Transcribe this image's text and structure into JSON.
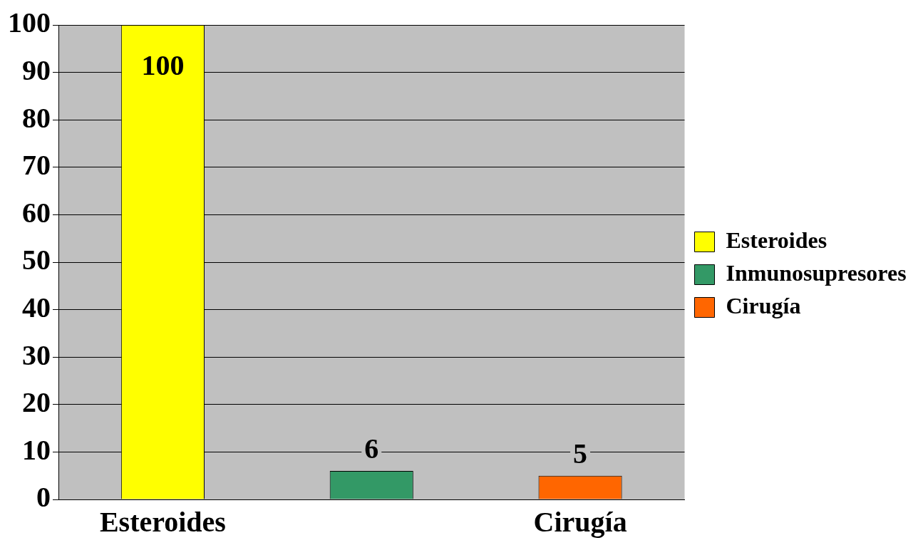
{
  "chart_data": {
    "type": "bar",
    "categories": [
      "Esteroides",
      null,
      "Cirugía"
    ],
    "series": [
      {
        "name": "Esteroides",
        "color": "#ffff00",
        "values": [
          100,
          null,
          null
        ]
      },
      {
        "name": "Inmunosupresores",
        "color": "#339966",
        "values": [
          null,
          6,
          null
        ]
      },
      {
        "name": "Cirugía",
        "color": "#ff6600",
        "values": [
          null,
          null,
          5
        ]
      }
    ],
    "ylim": [
      0,
      100
    ],
    "yticks": [
      0,
      10,
      20,
      30,
      40,
      50,
      60,
      70,
      80,
      90,
      100
    ],
    "grid": "y",
    "legend": "right",
    "data_labels": true
  }
}
